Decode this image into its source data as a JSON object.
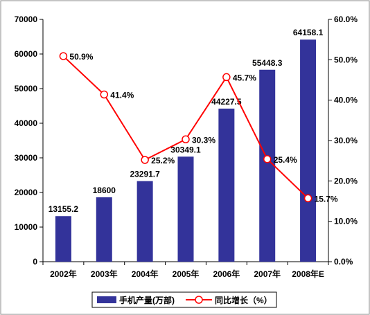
{
  "chart_data": {
    "type": "bar+line",
    "categories": [
      "2002年",
      "2003年",
      "2004年",
      "2005年",
      "2006年",
      "2007年",
      "2008年E"
    ],
    "series": [
      {
        "name": "手机产量(万部)",
        "type": "bar",
        "axis": "left",
        "values": [
          13155.2,
          18600,
          23291.7,
          30349.1,
          44227.5,
          55448.3,
          64158.1
        ],
        "labels": [
          "13155.2",
          "18600",
          "23291.7",
          "30349.1",
          "44227.5",
          "55448.3",
          "64158.1"
        ]
      },
      {
        "name": "同比增长（%）",
        "type": "line",
        "axis": "right",
        "values": [
          50.9,
          41.4,
          25.2,
          30.3,
          45.7,
          25.4,
          15.7
        ],
        "labels": [
          "50.9%",
          "41.4%",
          "25.2%",
          "30.3%",
          "45.7%",
          "25.4%",
          "15.7%"
        ]
      }
    ],
    "y_left": {
      "min": 0,
      "max": 70000,
      "ticks": [
        "0",
        "10000",
        "20000",
        "30000",
        "40000",
        "50000",
        "60000",
        "70000"
      ]
    },
    "y_right": {
      "min": 0,
      "max": 60,
      "ticks": [
        "0.0%",
        "10.0%",
        "20.0%",
        "30.0%",
        "40.0%",
        "50.0%",
        "60.0%"
      ]
    },
    "title": "",
    "xlabel": "",
    "ylabel": "",
    "grid": false,
    "legend_position": "bottom",
    "colors": {
      "bar": "#33339a",
      "line": "#ff0000",
      "marker_fill": "#ffffff",
      "axis": "#000000"
    }
  }
}
